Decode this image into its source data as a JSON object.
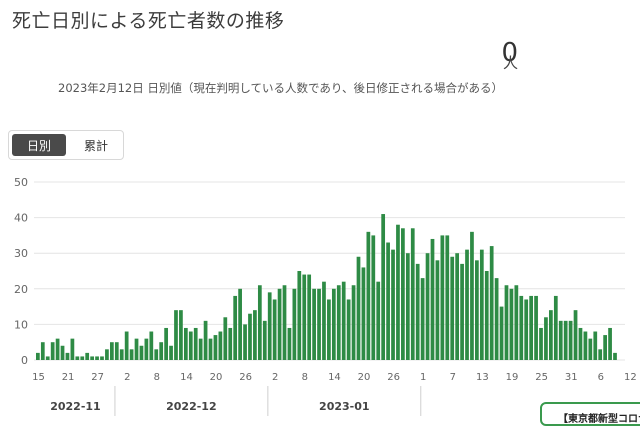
{
  "header": {
    "title": "死亡日別による死亡者数の推移",
    "count_value": "0",
    "count_unit": "人",
    "note": "2023年2月12日 日別値（現在判明している人数であり、後日修正される場合がある）"
  },
  "tabs": [
    {
      "label": "日別",
      "active": true
    },
    {
      "label": "累計",
      "active": false
    }
  ],
  "source_label": "【東京都新型コロナ",
  "colors": {
    "bar": "#2e8b45",
    "grid": "#e4e4e4",
    "axis_text": "#666666"
  },
  "chart_data": {
    "type": "bar",
    "title": "",
    "xlabel": "",
    "ylabel": "",
    "ylim": [
      0,
      50
    ],
    "yticks": [
      0,
      10,
      20,
      30,
      40,
      50
    ],
    "x_tick_labels": [
      "15",
      "21",
      "27",
      "2",
      "8",
      "14",
      "20",
      "26",
      "2",
      "8",
      "14",
      "20",
      "26",
      "1",
      "7",
      "13",
      "19",
      "25",
      "31",
      "6",
      "12"
    ],
    "month_labels": [
      "2022-11",
      "2022-12",
      "2023-01"
    ],
    "start_date": "2022-11-15",
    "values": [
      2,
      5,
      1,
      5,
      6,
      4,
      2,
      6,
      1,
      1,
      2,
      1,
      1,
      1,
      3,
      5,
      5,
      3,
      8,
      3,
      6,
      4,
      6,
      8,
      3,
      5,
      9,
      4,
      14,
      14,
      9,
      8,
      9,
      6,
      11,
      6,
      7,
      8,
      12,
      9,
      18,
      20,
      10,
      13,
      14,
      21,
      11,
      19,
      17,
      20,
      21,
      9,
      20,
      25,
      24,
      24,
      20,
      20,
      22,
      17,
      20,
      21,
      22,
      17,
      21,
      29,
      26,
      36,
      35,
      22,
      41,
      33,
      31,
      38,
      37,
      30,
      37,
      27,
      23,
      30,
      34,
      28,
      35,
      35,
      29,
      30,
      27,
      31,
      36,
      28,
      31,
      25,
      32,
      23,
      15,
      21,
      20,
      21,
      18,
      17,
      18,
      18,
      9,
      12,
      14,
      18,
      11,
      11,
      11,
      14,
      9,
      8,
      6,
      8,
      3,
      7,
      9,
      2,
      0
    ]
  }
}
